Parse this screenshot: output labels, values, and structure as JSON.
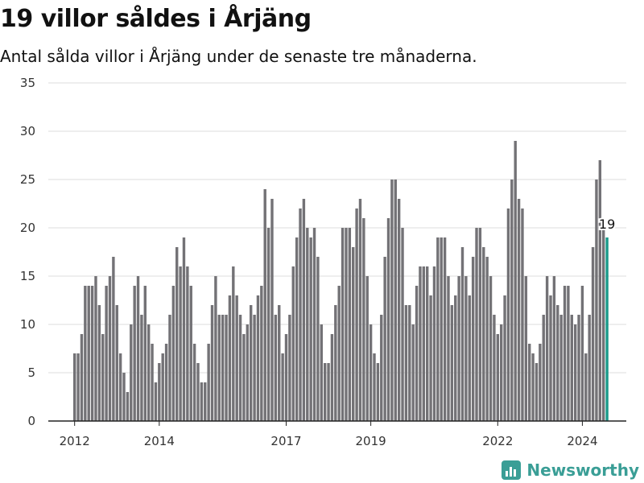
{
  "header": {
    "title": "19 villor såldes i Årjäng",
    "subtitle": "Antal sålda villor i Årjäng under de senaste tre månaderna."
  },
  "brand": {
    "name": "Newsworthy",
    "accent_color": "#3a9e96"
  },
  "chart_data": {
    "type": "bar",
    "title": "19 villor såldes i Årjäng",
    "subtitle": "Antal sålda villor i Årjäng under de senaste tre månaderna.",
    "xlabel": "",
    "ylabel": "",
    "ylim": [
      0,
      35
    ],
    "y_ticks": [
      0,
      5,
      10,
      15,
      20,
      25,
      30,
      35
    ],
    "x_tick_labels": [
      "2012",
      "2014",
      "2017",
      "2019",
      "2022",
      "2024"
    ],
    "x_tick_years": [
      2012,
      2014,
      2017,
      2019,
      2022,
      2024
    ],
    "first_year": 2012,
    "interval": "monthly",
    "grid": true,
    "bar_color": "#737276",
    "highlight_color": "#1a9a8a",
    "highlight_label": "19",
    "values": [
      7,
      7,
      9,
      14,
      14,
      14,
      15,
      12,
      9,
      14,
      15,
      17,
      12,
      7,
      5,
      3,
      10,
      14,
      15,
      11,
      14,
      10,
      8,
      4,
      6,
      7,
      8,
      11,
      14,
      18,
      16,
      19,
      16,
      14,
      8,
      6,
      4,
      4,
      8,
      12,
      15,
      11,
      11,
      11,
      13,
      16,
      13,
      11,
      9,
      10,
      12,
      11,
      13,
      14,
      24,
      20,
      23,
      11,
      12,
      7,
      9,
      11,
      16,
      19,
      22,
      23,
      20,
      19,
      20,
      17,
      10,
      6,
      6,
      9,
      12,
      14,
      20,
      20,
      20,
      18,
      22,
      23,
      21,
      15,
      10,
      7,
      6,
      11,
      17,
      21,
      25,
      25,
      23,
      20,
      12,
      12,
      10,
      14,
      16,
      16,
      16,
      13,
      16,
      19,
      19,
      19,
      15,
      12,
      13,
      15,
      18,
      15,
      13,
      17,
      20,
      20,
      18,
      17,
      15,
      11,
      9,
      10,
      13,
      22,
      25,
      29,
      23,
      22,
      15,
      8,
      7,
      6,
      8,
      11,
      15,
      13,
      15,
      12,
      11,
      14,
      14,
      11,
      10,
      11,
      14,
      7,
      11,
      18,
      25,
      27,
      20,
      19
    ]
  }
}
